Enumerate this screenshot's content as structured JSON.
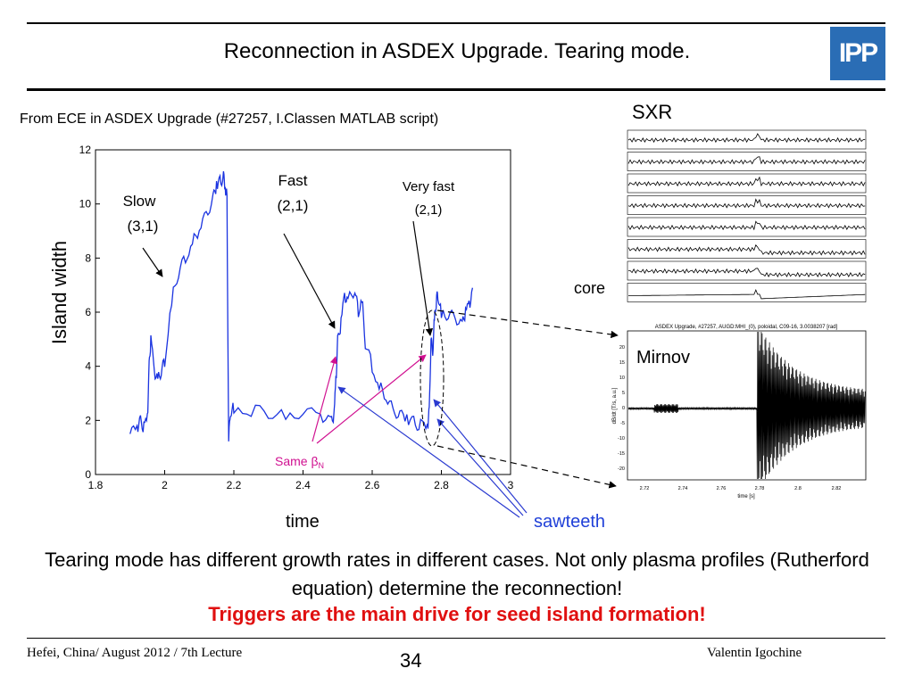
{
  "slide": {
    "title": "Reconnection in ASDEX Upgrade. Tearing mode.",
    "logo": "IPP",
    "subtitle": "From ECE in ASDEX Upgrade (#27257, I.Classen MATLAB script)",
    "sxr_label": "SXR",
    "core_label": "core",
    "mirnov_label": "Mirnov",
    "ylabel": "Island width",
    "xlabel": "time",
    "sawteeth_label": "sawteeth",
    "body_text": "Tearing mode has different growth rates in different cases. Not only plasma profiles (Rutherford equation) determine the reconnection!",
    "trigger_text": "Triggers are the main drive for seed island formation!",
    "footer_left": "Hefei, China/ August 2012 / 7th Lecture",
    "page_number": "34",
    "footer_right": "Valentin Igochine"
  },
  "annotations": {
    "slow": [
      "Slow",
      "(3,1)"
    ],
    "fast": [
      "Fast",
      "(2,1)"
    ],
    "very_fast": [
      "Very fast",
      "(2,1)"
    ],
    "same_beta": "Same β",
    "same_beta_sub": "N"
  },
  "mirnov_plot": {
    "title": "ASDEX Upgrade, #27257, AUGD:MHI_(0), poloidal, C09-16, 3.0038207 [rad]",
    "x_ticks": [
      "2.72",
      "2.74",
      "2.76",
      "2.78",
      "2.8",
      "2.82"
    ],
    "y_ticks": [
      "20",
      "15",
      "10",
      "5",
      "0",
      "-5",
      "-10",
      "-15",
      "-20"
    ]
  },
  "chart_data": {
    "type": "line",
    "xlabel": "time",
    "ylabel": "Island width",
    "xlim": [
      1.8,
      3.0
    ],
    "ylim": [
      0,
      12
    ],
    "x_ticks": [
      "1.8",
      "2",
      "2.2",
      "2.4",
      "2.6",
      "2.8",
      "3"
    ],
    "y_ticks": [
      "0",
      "2",
      "4",
      "6",
      "8",
      "10",
      "12"
    ],
    "grid": false,
    "series": [
      {
        "color": "#1a33e0",
        "x": [
          1.9,
          1.92,
          1.93,
          1.94,
          1.95,
          1.955,
          1.96,
          1.97,
          1.98,
          1.99,
          2.0,
          2.02,
          2.04,
          2.06,
          2.08,
          2.1,
          2.12,
          2.14,
          2.15,
          2.16,
          2.17,
          2.175,
          2.18,
          2.185,
          2.19,
          2.2,
          2.25,
          2.3,
          2.35,
          2.4,
          2.45,
          2.48,
          2.49,
          2.495,
          2.5,
          2.51,
          2.52,
          2.53,
          2.55,
          2.56,
          2.57,
          2.58,
          2.6,
          2.62,
          2.64,
          2.66,
          2.68,
          2.7,
          2.72,
          2.74,
          2.76,
          2.765,
          2.77,
          2.775,
          2.78,
          2.785,
          2.79,
          2.8,
          2.82,
          2.84,
          2.86,
          2.87,
          2.88,
          2.89
        ],
        "y": [
          1.5,
          1.7,
          2.0,
          1.7,
          2.0,
          4.0,
          5.0,
          3.8,
          3.6,
          3.8,
          4.2,
          6.5,
          7.5,
          8.0,
          8.6,
          9.0,
          9.6,
          10.2,
          10.6,
          10.8,
          11.0,
          10.5,
          10.3,
          1.3,
          2.3,
          2.5,
          2.4,
          2.3,
          2.2,
          2.3,
          2.2,
          2.0,
          2.2,
          3.4,
          4.9,
          5.6,
          6.6,
          6.5,
          6.8,
          6.0,
          6.6,
          4.9,
          4.0,
          3.3,
          2.8,
          2.4,
          2.2,
          2.0,
          1.9,
          1.8,
          1.7,
          2.4,
          5.0,
          4.5,
          5.9,
          6.4,
          6.7,
          6.0,
          5.9,
          5.8,
          5.6,
          6.0,
          6.2,
          6.9
        ]
      }
    ]
  }
}
